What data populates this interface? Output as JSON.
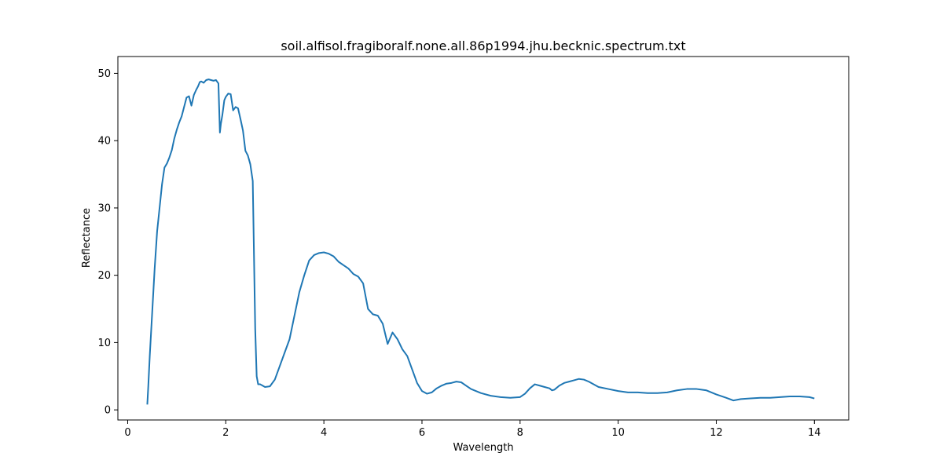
{
  "chart_data": {
    "type": "line",
    "title": "soil.alfisol.fragiboralf.none.all.86p1994.jhu.becknic.spectrum.txt",
    "xlabel": "Wavelength",
    "ylabel": "Reflectance",
    "xlim": [
      -0.2,
      14.7
    ],
    "ylim": [
      -1.5,
      52.5
    ],
    "xticks": [
      0,
      2,
      4,
      6,
      8,
      10,
      12,
      14
    ],
    "yticks": [
      0,
      10,
      20,
      30,
      40,
      50
    ],
    "grid": false,
    "legend": "none",
    "series": [
      {
        "color": "#1f77b4",
        "x": [
          0.4,
          0.42,
          0.45,
          0.5,
          0.55,
          0.6,
          0.65,
          0.7,
          0.75,
          0.8,
          0.85,
          0.9,
          0.95,
          1.0,
          1.05,
          1.1,
          1.15,
          1.2,
          1.25,
          1.3,
          1.35,
          1.4,
          1.43,
          1.47,
          1.5,
          1.55,
          1.6,
          1.65,
          1.7,
          1.75,
          1.8,
          1.85,
          1.88,
          1.9,
          1.93,
          1.97,
          2.0,
          2.05,
          2.1,
          2.15,
          2.2,
          2.25,
          2.3,
          2.35,
          2.4,
          2.45,
          2.5,
          2.55,
          2.6,
          2.63,
          2.66,
          2.7,
          2.75,
          2.8,
          2.9,
          3.0,
          3.1,
          3.2,
          3.3,
          3.4,
          3.5,
          3.6,
          3.7,
          3.8,
          3.9,
          4.0,
          4.1,
          4.2,
          4.3,
          4.4,
          4.5,
          4.6,
          4.7,
          4.8,
          4.9,
          5.0,
          5.1,
          5.2,
          5.3,
          5.4,
          5.5,
          5.6,
          5.7,
          5.8,
          5.9,
          6.0,
          6.1,
          6.2,
          6.3,
          6.4,
          6.5,
          6.6,
          6.7,
          6.8,
          6.9,
          7.0,
          7.2,
          7.4,
          7.6,
          7.8,
          8.0,
          8.1,
          8.2,
          8.3,
          8.4,
          8.5,
          8.6,
          8.65,
          8.7,
          8.8,
          8.9,
          9.0,
          9.1,
          9.2,
          9.3,
          9.4,
          9.6,
          9.8,
          10.0,
          10.2,
          10.4,
          10.6,
          10.8,
          11.0,
          11.2,
          11.4,
          11.6,
          11.8,
          12.0,
          12.2,
          12.35,
          12.5,
          12.7,
          12.9,
          13.1,
          13.3,
          13.5,
          13.7,
          13.9,
          14.0
        ],
        "y": [
          0.8,
          3.5,
          8.0,
          14.5,
          21.0,
          26.5,
          30.0,
          33.5,
          36.0,
          36.6,
          37.5,
          38.6,
          40.3,
          41.6,
          42.7,
          43.6,
          45.0,
          46.4,
          46.6,
          45.2,
          46.8,
          47.6,
          48.0,
          48.7,
          48.8,
          48.6,
          49.0,
          49.1,
          49.0,
          48.9,
          49.0,
          48.5,
          41.2,
          42.5,
          43.8,
          46.0,
          46.5,
          47.0,
          46.9,
          44.5,
          45.0,
          44.8,
          43.2,
          41.5,
          38.5,
          37.8,
          36.5,
          34.0,
          12.0,
          5.0,
          3.8,
          3.8,
          3.6,
          3.4,
          3.5,
          4.5,
          6.5,
          8.5,
          10.5,
          14.0,
          17.5,
          20.0,
          22.2,
          23.0,
          23.3,
          23.4,
          23.2,
          22.8,
          22.0,
          21.5,
          21.0,
          20.2,
          19.8,
          18.8,
          15.0,
          14.2,
          14.0,
          12.8,
          9.8,
          11.5,
          10.5,
          9.0,
          8.0,
          6.0,
          4.0,
          2.8,
          2.4,
          2.6,
          3.2,
          3.6,
          3.9,
          4.0,
          4.2,
          4.1,
          3.6,
          3.1,
          2.5,
          2.1,
          1.9,
          1.8,
          1.9,
          2.4,
          3.2,
          3.8,
          3.6,
          3.4,
          3.2,
          2.9,
          3.0,
          3.6,
          4.0,
          4.2,
          4.4,
          4.6,
          4.5,
          4.2,
          3.4,
          3.1,
          2.8,
          2.6,
          2.6,
          2.5,
          2.5,
          2.6,
          2.9,
          3.1,
          3.1,
          2.9,
          2.3,
          1.8,
          1.4,
          1.6,
          1.7,
          1.8,
          1.8,
          1.9,
          2.0,
          2.0,
          1.9,
          1.7
        ]
      }
    ]
  }
}
